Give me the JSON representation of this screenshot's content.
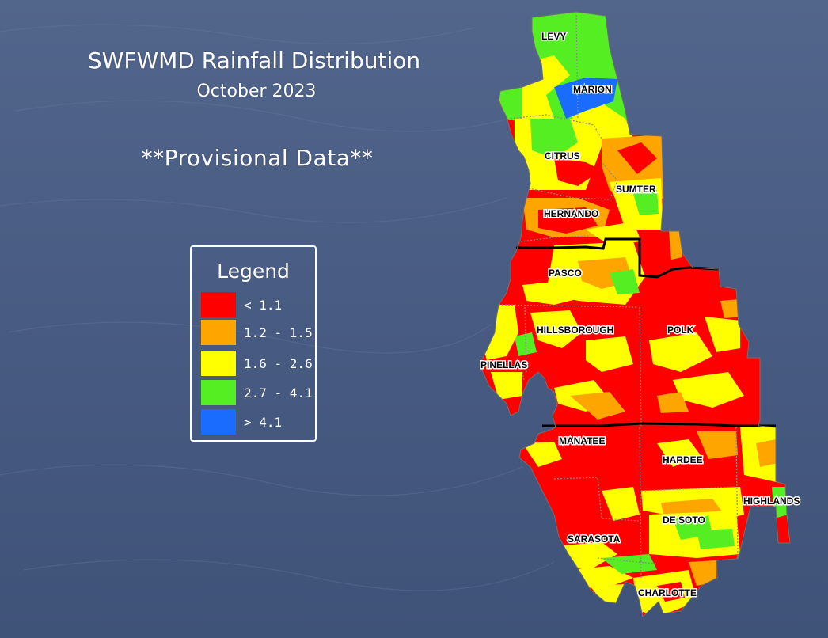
{
  "title": "SWFWMD Rainfall Distribution",
  "subtitle": "October 2023",
  "note": "**Provisional Data**",
  "legend": {
    "title": "Legend",
    "items": [
      {
        "label": "< 1.1",
        "color": "#ff0000"
      },
      {
        "label": "1.2 - 1.5",
        "color": "#ffa500"
      },
      {
        "label": "1.6 - 2.6",
        "color": "#ffff00"
      },
      {
        "label": "2.7 - 4.1",
        "color": "#55ee22"
      },
      {
        "label": "> 4.1",
        "color": "#1a6cff"
      }
    ]
  },
  "counties": {
    "levy": "LEVY",
    "marion": "MARION",
    "citrus": "CITRUS",
    "sumter": "SUMTER",
    "hernando": "HERNANDO",
    "pasco": "PASCO",
    "hillsborough": "HILLSBOROUGH",
    "polk": "POLK",
    "pinellas": "PINELLAS",
    "manatee": "MANATEE",
    "hardee": "HARDEE",
    "highlands": "HIGHLANDS",
    "desoto": "DE SOTO",
    "sarasota": "SARASOTA",
    "charlotte": "CHARLOTTE"
  },
  "colors": {
    "background": "#4a5d84",
    "boundary": "#000000",
    "county_line": "#8a8a8a"
  }
}
